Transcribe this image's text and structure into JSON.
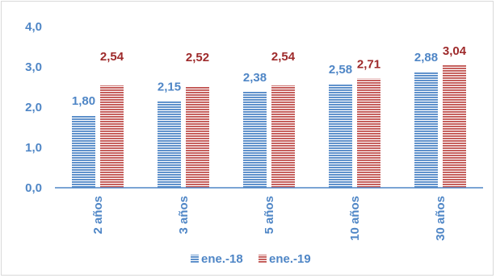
{
  "chart_data": {
    "type": "bar",
    "categories": [
      "2 años",
      "3 años",
      "5 años",
      "10 años",
      "30 años"
    ],
    "series": [
      {
        "name": "ene.-18",
        "values": [
          1.8,
          2.15,
          2.38,
          2.58,
          2.88
        ],
        "color": "#4f86c6",
        "label_color": "#4f86c6"
      },
      {
        "name": "ene.-19",
        "values": [
          2.54,
          2.52,
          2.54,
          2.71,
          3.04
        ],
        "color": "#c0504d",
        "label_color": "#9e2a2b"
      }
    ],
    "data_labels": [
      [
        "1,80",
        "2,15",
        "2,38",
        "2,58",
        "2,88"
      ],
      [
        "2,54",
        "2,52",
        "2,54",
        "2,71",
        "3,04"
      ]
    ],
    "y_ticks": [
      "0,0",
      "1,0",
      "2,0",
      "3,0",
      "4,0"
    ],
    "ylim": [
      0,
      4
    ],
    "title": "",
    "xlabel": "",
    "ylabel": "",
    "grid": false,
    "legend_position": "bottom",
    "axis_color": "#4f86c6"
  }
}
